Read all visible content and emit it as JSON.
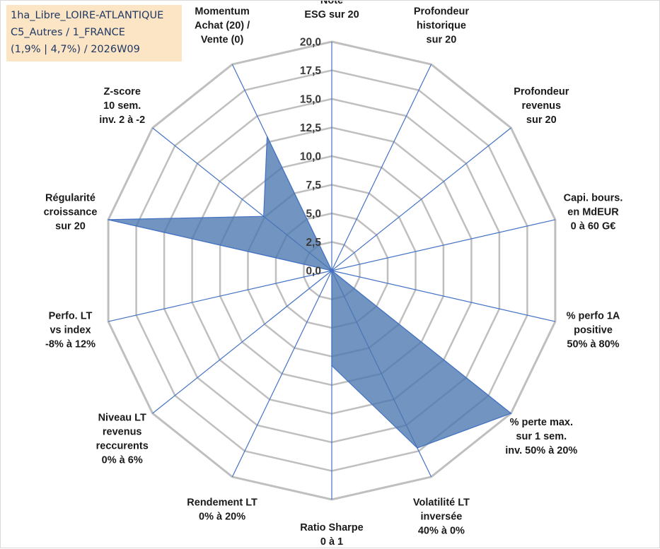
{
  "info_box": {
    "line1": "1ha_Libre_LOIRE-ATLANTIQUE",
    "line2": "C5_Autres / 1_FRANCE",
    "line3": "(1,9% | 4,7%) / 2026W09"
  },
  "colors": {
    "fill": "#4a76b0",
    "stroke": "#4472c4",
    "grid": "#bfbfbf",
    "spoke": "#4472c4",
    "info_bg": "#fbe5c4",
    "info_text": "#1f3864"
  },
  "chart_data": {
    "type": "radar",
    "rmin": 0,
    "rmax": 20,
    "ticks": [
      "0,0",
      "2,5",
      "5,0",
      "7,5",
      "10,0",
      "12,5",
      "15,0",
      "17,5",
      "20,0"
    ],
    "categories": [
      [
        "Note",
        "ESG sur 20"
      ],
      [
        "Profondeur",
        "historique",
        "sur 20"
      ],
      [
        "Profondeur",
        "revenus",
        "sur 20"
      ],
      [
        "Capi. bours.",
        "en MdEUR",
        "0 à 60 G€"
      ],
      [
        "% perfo 1A",
        "positive",
        "50% à 80%"
      ],
      [
        "% perte max.",
        "sur 1 sem.",
        "inv. 50% à 20%"
      ],
      [
        "Volatilité LT",
        "inversée",
        "40% à 0%"
      ],
      [
        "Ratio Sharpe",
        "0 à 1"
      ],
      [
        "Rendement LT",
        "0% à 20%"
      ],
      [
        "Niveau LT",
        "revenus",
        "reccurents",
        "0% à 6%"
      ],
      [
        "Perfo. LT",
        "vs index",
        "-8% à 12%"
      ],
      [
        "Régularité",
        "croissance",
        "sur 20"
      ],
      [
        "Z-score",
        "10 sem.",
        "inv. 2 à -2"
      ],
      [
        "Momentum",
        "Achat (20) /",
        "Vente (0)"
      ]
    ],
    "series": [
      {
        "values": [
          0,
          0,
          0,
          0,
          0,
          20,
          17.2,
          8.3,
          0,
          0,
          0,
          20,
          7.6,
          13
        ]
      }
    ],
    "grid": true
  }
}
